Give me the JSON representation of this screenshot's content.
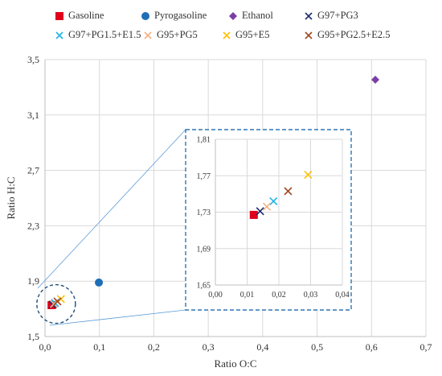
{
  "chart_data": {
    "type": "scatter",
    "xlabel": "Ratio O:C",
    "ylabel": "Ratio H:C",
    "xlim": [
      0.0,
      0.7
    ],
    "ylim": [
      1.5,
      3.5
    ],
    "x_ticks": [
      "0,0",
      "0,1",
      "0,2",
      "0,3",
      "0,4",
      "0,5",
      "0,6",
      "0,7"
    ],
    "y_ticks": [
      "1,5",
      "1,9",
      "2,3",
      "2,7",
      "3,1",
      "3,5"
    ],
    "grid": true,
    "legend_position": "top",
    "series": [
      {
        "name": "Gasoline",
        "marker": "square",
        "color": "#E0001B",
        "x": 0.0121,
        "y": 1.727
      },
      {
        "name": "Pyrogasoline",
        "marker": "circle",
        "color": "#1F6FB7",
        "x": 0.099,
        "y": 1.89
      },
      {
        "name": "Ethanol",
        "marker": "diamond",
        "color": "#7B3FA8",
        "x": 0.607,
        "y": 3.355
      },
      {
        "name": "G97+PG3",
        "marker": "x",
        "color": "#1A2A6C",
        "x": 0.0141,
        "y": 1.731
      },
      {
        "name": "G97+PG1.5+E1.5",
        "marker": "x",
        "color": "#20B4E8",
        "x": 0.0183,
        "y": 1.742
      },
      {
        "name": "G95+PG5",
        "marker": "x",
        "color": "#F4B183",
        "x": 0.0162,
        "y": 1.736
      },
      {
        "name": "G95+E5",
        "marker": "x",
        "color": "#FFC000",
        "x": 0.0292,
        "y": 1.771
      },
      {
        "name": "G95+PG2.5+E2.5",
        "marker": "x",
        "color": "#A0441C",
        "x": 0.0229,
        "y": 1.753
      }
    ],
    "inset": {
      "xlim": [
        0.0,
        0.04
      ],
      "ylim": [
        1.65,
        1.81
      ],
      "x_ticks": [
        "0,00",
        "0,01",
        "0,02",
        "0,03",
        "0,04"
      ],
      "y_ticks": [
        "1,65",
        "1,69",
        "1,73",
        "1,77",
        "1,81"
      ]
    }
  }
}
